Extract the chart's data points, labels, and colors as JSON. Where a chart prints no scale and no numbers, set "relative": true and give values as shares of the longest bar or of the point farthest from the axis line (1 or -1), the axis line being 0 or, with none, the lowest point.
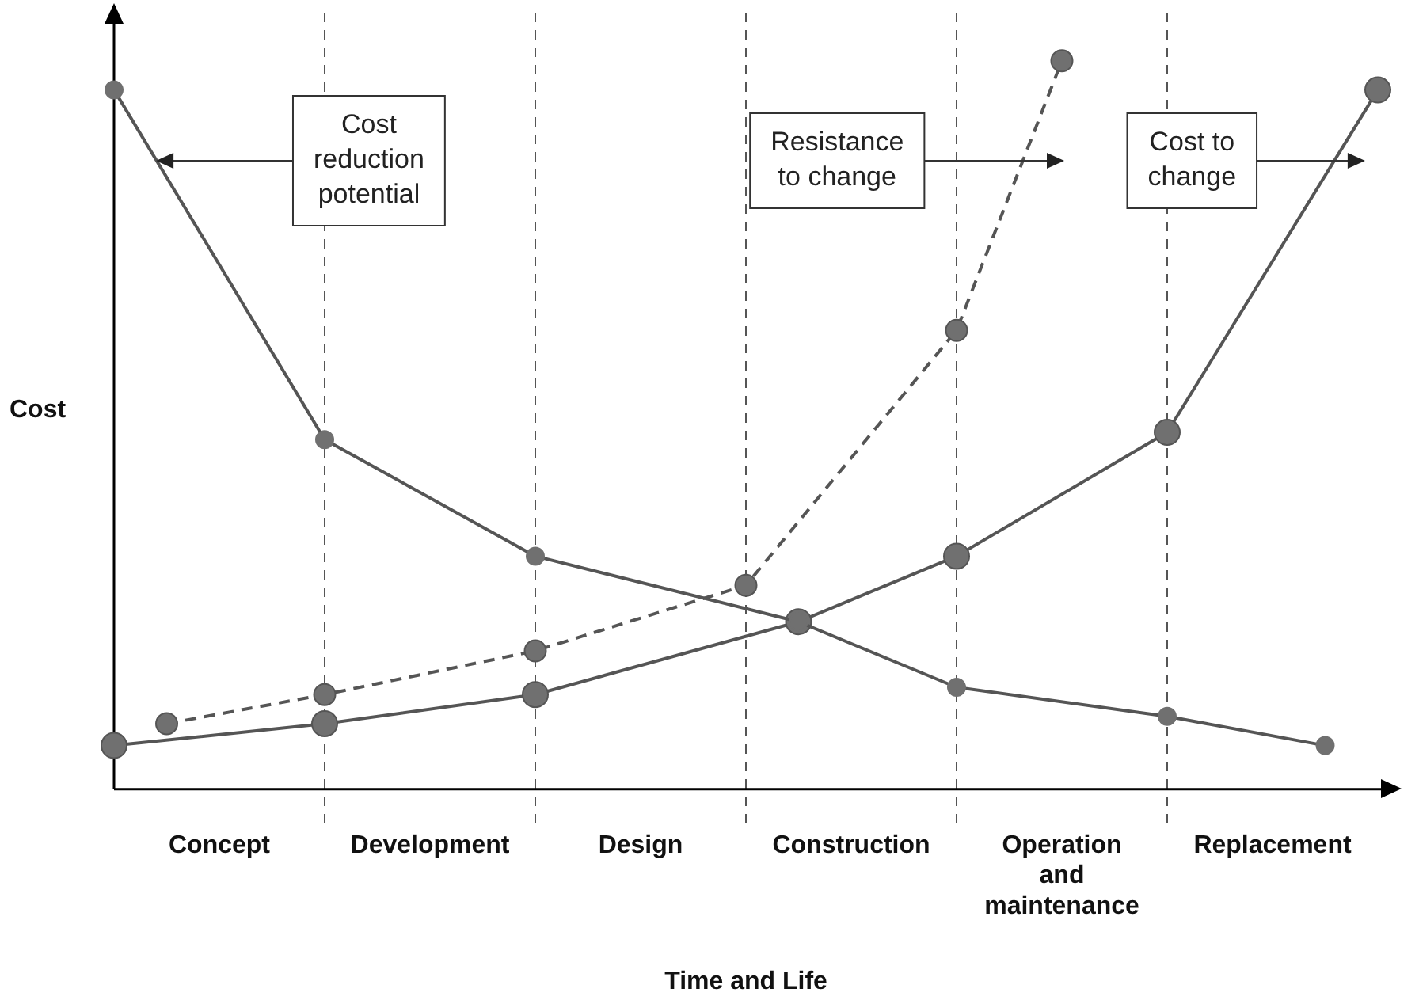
{
  "chart_data": {
    "type": "line",
    "relative": true,
    "ylabel": "Cost",
    "xlabel": "Time and Life",
    "categories": [
      null,
      null,
      "Concept",
      null,
      null,
      null,
      "Development",
      null,
      null,
      null,
      "Design",
      null,
      null,
      null,
      "Construction",
      null,
      null,
      null,
      "Operation and maintenance",
      null,
      null,
      null,
      "Replacement",
      null,
      null
    ],
    "series": [
      {
        "color": "#555555",
        "line_style": "solid",
        "values": [
          0.96,
          null,
          null,
          null,
          0.48,
          null,
          null,
          null,
          0.32,
          null,
          null,
          null,
          null,
          0.23,
          null,
          null,
          0.14,
          null,
          null,
          null,
          0.1,
          null,
          null,
          0.06,
          null
        ]
      },
      {
        "color": "#555555",
        "line_style": "dashed",
        "values": [
          null,
          0.09,
          null,
          null,
          0.13,
          null,
          null,
          null,
          0.19,
          null,
          null,
          null,
          0.28,
          null,
          null,
          null,
          0.63,
          null,
          1.0,
          null,
          null,
          null,
          null,
          null,
          null
        ]
      },
      {
        "color": "#555555",
        "line_style": "solid",
        "values": [
          0.06,
          null,
          null,
          null,
          0.09,
          null,
          null,
          null,
          0.13,
          null,
          null,
          null,
          null,
          0.23,
          null,
          null,
          0.32,
          null,
          null,
          null,
          0.49,
          null,
          null,
          null,
          0.96
        ]
      }
    ],
    "marker": "circle",
    "grid": "x",
    "legend": false,
    "annotations": [
      "Cost reduction potential",
      "Resistance to change",
      "Cost to change"
    ]
  }
}
